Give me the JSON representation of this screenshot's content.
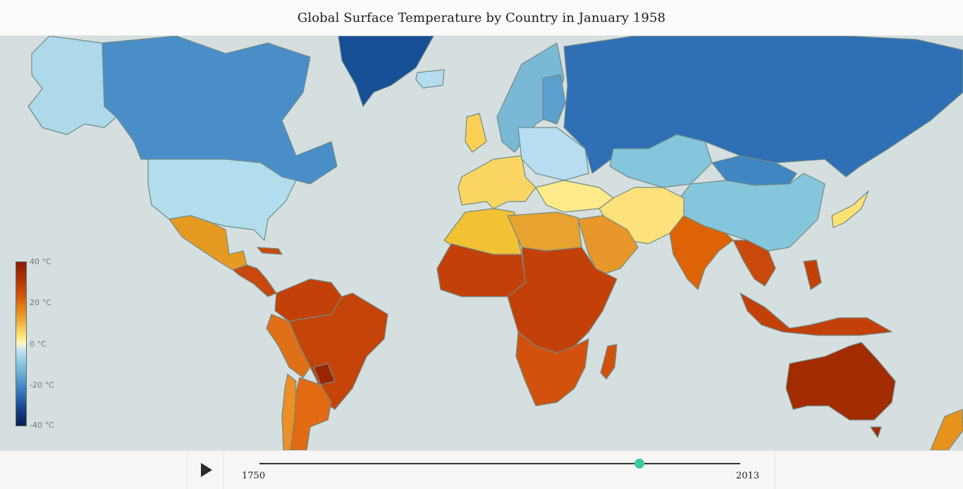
{
  "header": {
    "title": "Global Surface Temperature by Country in January 1958"
  },
  "legend": {
    "labels": [
      "40 °C",
      "20 °C",
      "0 °C",
      "-20 °C",
      "-40 °C"
    ],
    "min": -40,
    "max": 40
  },
  "timeline": {
    "start_label": "1750",
    "end_label": "2013",
    "start": 1750,
    "end": 2013,
    "current": 1958,
    "play_icon": "play-icon"
  },
  "colors": {
    "ocean": "#d6dfdf",
    "border": "#6f8b87",
    "handle": "#3dc9a2"
  },
  "chart_data": {
    "type": "choropleth",
    "unit": "°C",
    "period": "January 1958",
    "regions": [
      {
        "name": "Alaska",
        "fill": "#add9ea"
      },
      {
        "name": "Canada",
        "fill": "#4a8ec8"
      },
      {
        "name": "Greenland",
        "fill": "#174f97"
      },
      {
        "name": "United States",
        "fill": "#b1dded"
      },
      {
        "name": "Mexico",
        "fill": "#e79a22"
      },
      {
        "name": "Central America",
        "fill": "#c9480b"
      },
      {
        "name": "Caribbean",
        "fill": "#c9480b"
      },
      {
        "name": "Colombia",
        "fill": "#c34109"
      },
      {
        "name": "Venezuela",
        "fill": "#c34109"
      },
      {
        "name": "Peru",
        "fill": "#e07018"
      },
      {
        "name": "Brazil",
        "fill": "#c44409"
      },
      {
        "name": "Bolivia",
        "fill": "#c44409"
      },
      {
        "name": "Paraguay",
        "fill": "#9b2500"
      },
      {
        "name": "Argentina",
        "fill": "#e26a12"
      },
      {
        "name": "Chile",
        "fill": "#ec8f26"
      },
      {
        "name": "Iceland",
        "fill": "#b4def0"
      },
      {
        "name": "Scandinavia",
        "fill": "#7ab8d6"
      },
      {
        "name": "Finland",
        "fill": "#5a9fcd"
      },
      {
        "name": "United Kingdom",
        "fill": "#fcd054"
      },
      {
        "name": "Western Europe",
        "fill": "#fbd562"
      },
      {
        "name": "Central Europe",
        "fill": "#b7def0"
      },
      {
        "name": "Eastern Europe",
        "fill": "#a8d5e8"
      },
      {
        "name": "Balkans",
        "fill": "#fdea88"
      },
      {
        "name": "Russia",
        "fill": "#2f6fb5"
      },
      {
        "name": "Kazakhstan",
        "fill": "#86c6dd"
      },
      {
        "name": "Mongolia",
        "fill": "#3f86c2"
      },
      {
        "name": "China",
        "fill": "#86c6dd"
      },
      {
        "name": "Japan",
        "fill": "#fde172"
      },
      {
        "name": "Turkey",
        "fill": "#fdea8a"
      },
      {
        "name": "Middle East",
        "fill": "#fbd15a"
      },
      {
        "name": "Arabian Peninsula",
        "fill": "#e8982a"
      },
      {
        "name": "Iran",
        "fill": "#fde17a"
      },
      {
        "name": "India",
        "fill": "#dd6304"
      },
      {
        "name": "Southeast Asia",
        "fill": "#c9480b"
      },
      {
        "name": "Indonesia",
        "fill": "#c34109"
      },
      {
        "name": "Philippines",
        "fill": "#c34109"
      },
      {
        "name": "North Africa",
        "fill": "#f3c234"
      },
      {
        "name": "Libya/Egypt",
        "fill": "#e8a230"
      },
      {
        "name": "West Africa",
        "fill": "#c34109"
      },
      {
        "name": "Central Africa",
        "fill": "#c34109"
      },
      {
        "name": "Southern Africa",
        "fill": "#d2520d"
      },
      {
        "name": "Madagascar",
        "fill": "#d2520d"
      },
      {
        "name": "Australia",
        "fill": "#a32b00"
      },
      {
        "name": "New Zealand",
        "fill": "#e8921e"
      }
    ]
  }
}
